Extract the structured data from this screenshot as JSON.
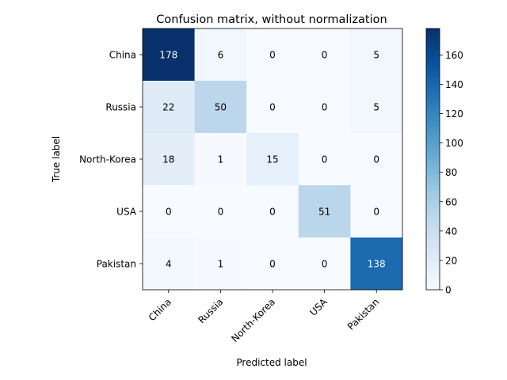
{
  "chart_data": {
    "type": "heatmap",
    "title": "Confusion matrix, without normalization",
    "xlabel": "Predicted label",
    "ylabel": "True label",
    "x_categories": [
      "China",
      "Russia",
      "North-Korea",
      "USA",
      "Pakistan"
    ],
    "y_categories": [
      "China",
      "Russia",
      "North-Korea",
      "USA",
      "Pakistan"
    ],
    "values": [
      [
        178,
        6,
        0,
        0,
        5
      ],
      [
        22,
        50,
        0,
        0,
        5
      ],
      [
        18,
        1,
        15,
        0,
        0
      ],
      [
        0,
        0,
        0,
        51,
        0
      ],
      [
        4,
        1,
        0,
        0,
        138
      ]
    ],
    "color_range": [
      0,
      178
    ],
    "colormap": "Blues",
    "colorbar_ticks": [
      0,
      20,
      40,
      60,
      80,
      100,
      120,
      140,
      160
    ],
    "colors": {
      "low": "#f7fbff",
      "high": "#08306b"
    }
  }
}
